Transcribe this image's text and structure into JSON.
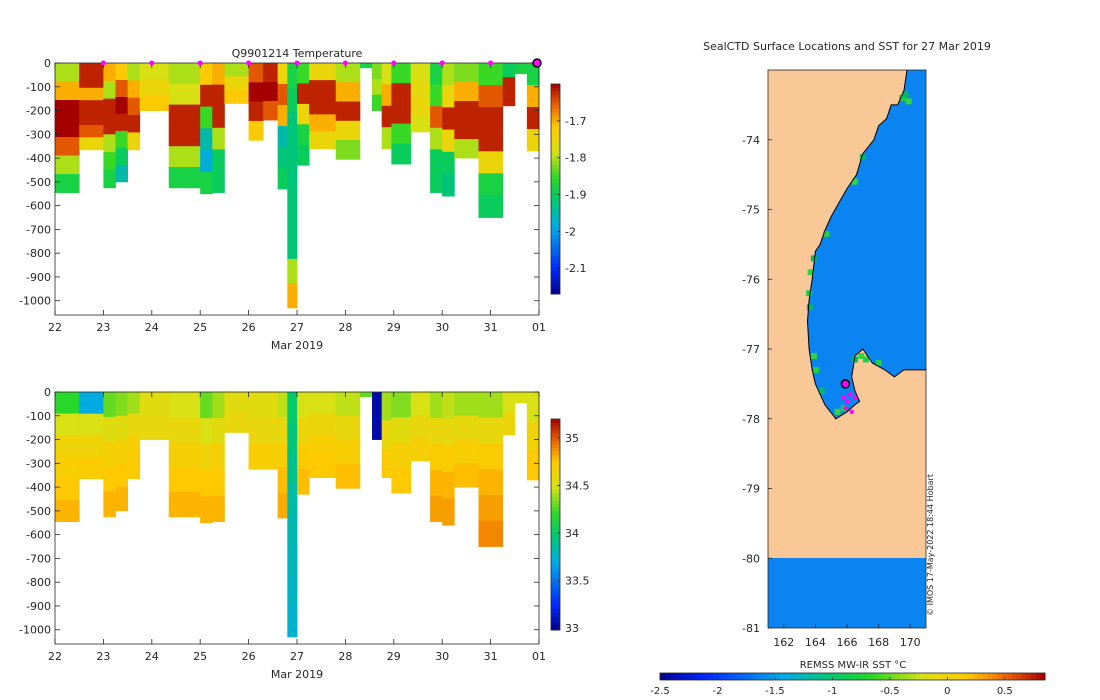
{
  "figure": {
    "credit": "© IMOS 17-May-2022 18:44 Hobart"
  },
  "colors": {
    "ocean": "#0a84f0",
    "land": "#f9c896",
    "coast": "#000000",
    "profile_marker": "#ff00ff",
    "current_marker": "#ff00ff",
    "axis": "#262626"
  },
  "chart_data": [
    {
      "type": "heatmap",
      "panel": "temperature",
      "title": "Q9901214  Temperature",
      "xlabel": "Mar 2019",
      "ylabel": "",
      "x_ticks": [
        22,
        23,
        24,
        25,
        26,
        27,
        28,
        29,
        30,
        31,
        1
      ],
      "x_tick_labels": [
        "22",
        "23",
        "24",
        "25",
        "26",
        "27",
        "28",
        "29",
        "30",
        "31",
        "01"
      ],
      "xlim": [
        22,
        32
      ],
      "y_ticks": [
        0,
        -100,
        -200,
        -300,
        -400,
        -500,
        -600,
        -700,
        -800,
        -900,
        -1000
      ],
      "y_tick_labels": [
        "0",
        "-100",
        "-200",
        "-300",
        "-400",
        "-500",
        "-600",
        "-700",
        "-800",
        "-900",
        "-1000"
      ],
      "ylim": [
        -1060,
        0
      ],
      "colorbar": {
        "ticks": [
          -1.7,
          -1.8,
          -1.9,
          -2,
          -2.1
        ],
        "tick_labels": [
          "-1.7",
          "-1.8",
          "-1.9",
          "-2",
          "-2.1"
        ],
        "range": [
          -2.17,
          -1.6
        ]
      },
      "profile_markers_x": [
        23,
        24,
        25,
        26,
        27,
        28,
        29,
        30,
        31
      ],
      "current_marker_x": 32,
      "profiles": [
        {
          "x0": 22.0,
          "x1": 22.5,
          "depth": 545,
          "values": [
            -1.8,
            -1.7,
            -1.6,
            -1.6,
            -1.65,
            -1.8,
            -1.88
          ]
        },
        {
          "x0": 22.5,
          "x1": 23.0,
          "depth": 365,
          "values": [
            -1.62,
            -1.62,
            -1.7,
            -1.62,
            -1.62,
            -1.65,
            -1.75
          ]
        },
        {
          "x0": 23.0,
          "x1": 23.25,
          "depth": 525,
          "values": [
            -1.7,
            -1.8,
            -1.62,
            -1.62,
            -1.8,
            -1.85,
            -1.88
          ]
        },
        {
          "x0": 23.25,
          "x1": 23.5,
          "depth": 500,
          "values": [
            -1.72,
            -1.65,
            -1.6,
            -1.62,
            -1.85,
            -1.9,
            -1.95
          ]
        },
        {
          "x0": 23.5,
          "x1": 23.75,
          "depth": 365,
          "values": [
            -1.8,
            -1.7,
            -1.65,
            -1.62,
            -1.75
          ]
        },
        {
          "x0": 23.75,
          "x1": 24.35,
          "depth": 200,
          "values": [
            -1.78,
            -1.75,
            -1.72
          ]
        },
        {
          "x0": 24.35,
          "x1": 25.0,
          "depth": 525,
          "values": [
            -1.8,
            -1.78,
            -1.62,
            -1.62,
            -1.8,
            -1.88
          ]
        },
        {
          "x0": 25.0,
          "x1": 25.25,
          "depth": 550,
          "values": [
            -1.72,
            -1.62,
            -1.85,
            -1.95,
            -1.98,
            -1.88
          ]
        },
        {
          "x0": 25.25,
          "x1": 25.5,
          "depth": 545,
          "values": [
            -1.7,
            -1.62,
            -1.62,
            -1.8,
            -1.9,
            -1.9
          ]
        },
        {
          "x0": 25.5,
          "x1": 26.0,
          "depth": 170,
          "values": [
            -1.8,
            -1.75,
            -1.72
          ]
        },
        {
          "x0": 26.0,
          "x1": 26.3,
          "depth": 325,
          "values": [
            -1.65,
            -1.6,
            -1.62,
            -1.72
          ]
        },
        {
          "x0": 26.3,
          "x1": 26.6,
          "depth": 240,
          "values": [
            -1.62,
            -1.6,
            -1.65
          ]
        },
        {
          "x0": 26.6,
          "x1": 26.8,
          "depth": 530,
          "values": [
            -1.75,
            -1.65,
            -1.7,
            -1.95,
            -1.92,
            -1.9
          ]
        },
        {
          "x0": 26.8,
          "x1": 27.0,
          "depth": 1030,
          "values": [
            -1.88,
            -1.9,
            -1.92,
            -1.92,
            -1.92,
            -1.92,
            -1.92,
            -1.92,
            -1.8,
            -1.7
          ]
        },
        {
          "x0": 27.0,
          "x1": 27.25,
          "depth": 430,
          "values": [
            -1.85,
            -1.62,
            -1.75,
            -1.88,
            -1.9
          ]
        },
        {
          "x0": 27.25,
          "x1": 27.8,
          "depth": 360,
          "values": [
            -1.75,
            -1.62,
            -1.62,
            -1.7,
            -1.75
          ]
        },
        {
          "x0": 27.8,
          "x1": 28.3,
          "depth": 405,
          "values": [
            -1.8,
            -1.7,
            -1.62,
            -1.75,
            -1.82
          ]
        },
        {
          "x0": 28.3,
          "x1": 28.55,
          "depth": 20,
          "values": [
            -1.88
          ]
        },
        {
          "x0": 28.55,
          "x1": 28.75,
          "depth": 200,
          "values": [
            -1.82,
            -1.8,
            -1.85
          ]
        },
        {
          "x0": 28.75,
          "x1": 28.95,
          "depth": 360,
          "values": [
            -1.78,
            -1.7,
            -1.62,
            -1.8
          ]
        },
        {
          "x0": 28.95,
          "x1": 29.35,
          "depth": 425,
          "values": [
            -1.85,
            -1.62,
            -1.62,
            -1.85,
            -1.9
          ]
        },
        {
          "x0": 29.35,
          "x1": 29.75,
          "depth": 290,
          "values": [
            -1.78,
            -1.76,
            -1.75,
            -1.78
          ]
        },
        {
          "x0": 29.75,
          "x1": 30.0,
          "depth": 545,
          "values": [
            -1.88,
            -1.85,
            -1.65,
            -1.8,
            -1.9,
            -1.9
          ]
        },
        {
          "x0": 30.0,
          "x1": 30.25,
          "depth": 560,
          "values": [
            -1.8,
            -1.75,
            -1.62,
            -1.75,
            -1.9,
            -1.92
          ]
        },
        {
          "x0": 30.25,
          "x1": 30.75,
          "depth": 400,
          "values": [
            -1.82,
            -1.7,
            -1.62,
            -1.62,
            -1.8
          ]
        },
        {
          "x0": 30.75,
          "x1": 31.25,
          "depth": 650,
          "values": [
            -1.85,
            -1.65,
            -1.62,
            -1.62,
            -1.75,
            -1.88,
            -1.9
          ]
        },
        {
          "x0": 31.25,
          "x1": 31.5,
          "depth": 180,
          "values": [
            -1.9,
            -1.62,
            -1.62
          ]
        },
        {
          "x0": 31.5,
          "x1": 31.75,
          "depth": 45,
          "values": [
            -1.88
          ]
        },
        {
          "x0": 31.75,
          "x1": 32.0,
          "depth": 370,
          "values": [
            -1.88,
            -1.7,
            -1.62,
            -1.75
          ]
        }
      ]
    },
    {
      "type": "heatmap",
      "panel": "salinity",
      "title": "",
      "xlabel": "Mar 2019",
      "ylabel": "",
      "x_ticks": [
        22,
        23,
        24,
        25,
        26,
        27,
        28,
        29,
        30,
        31,
        1
      ],
      "x_tick_labels": [
        "22",
        "23",
        "24",
        "25",
        "26",
        "27",
        "28",
        "29",
        "30",
        "31",
        "01"
      ],
      "xlim": [
        22,
        32
      ],
      "y_ticks": [
        0,
        -100,
        -200,
        -300,
        -400,
        -500,
        -600,
        -700,
        -800,
        -900,
        -1000
      ],
      "y_tick_labels": [
        "0",
        "-100",
        "-200",
        "-300",
        "-400",
        "-500",
        "-600",
        "-700",
        "-800",
        "-900",
        "-1000"
      ],
      "ylim": [
        -1060,
        0
      ],
      "colorbar": {
        "ticks": [
          35,
          34.5,
          34,
          33.5,
          33
        ],
        "tick_labels": [
          "35",
          "34.5",
          "34",
          "33.5",
          "33"
        ],
        "range": [
          32.98,
          35.2
        ]
      },
      "profiles": [
        {
          "x0": 22.0,
          "x1": 22.5,
          "depth": 545,
          "values": [
            34.2,
            34.5,
            34.65,
            34.7,
            34.75,
            34.8
          ]
        },
        {
          "x0": 22.5,
          "x1": 23.0,
          "depth": 365,
          "values": [
            33.7,
            34.5,
            34.65,
            34.72
          ]
        },
        {
          "x0": 23.0,
          "x1": 23.25,
          "depth": 525,
          "values": [
            34.3,
            34.55,
            34.68,
            34.75,
            34.8
          ]
        },
        {
          "x0": 23.25,
          "x1": 23.5,
          "depth": 500,
          "values": [
            34.35,
            34.55,
            34.68,
            34.75,
            34.8
          ]
        },
        {
          "x0": 23.5,
          "x1": 23.75,
          "depth": 365,
          "values": [
            34.4,
            34.6,
            34.7,
            34.72
          ]
        },
        {
          "x0": 23.75,
          "x1": 24.35,
          "depth": 200,
          "values": [
            34.55,
            34.6
          ]
        },
        {
          "x0": 24.35,
          "x1": 25.0,
          "depth": 525,
          "values": [
            34.5,
            34.6,
            34.68,
            34.75,
            34.8
          ]
        },
        {
          "x0": 25.0,
          "x1": 25.25,
          "depth": 550,
          "values": [
            34.3,
            34.5,
            34.65,
            34.75,
            34.8
          ]
        },
        {
          "x0": 25.25,
          "x1": 25.5,
          "depth": 545,
          "values": [
            34.4,
            34.55,
            34.68,
            34.75,
            34.8
          ]
        },
        {
          "x0": 25.5,
          "x1": 26.0,
          "depth": 170,
          "values": [
            34.55,
            34.6
          ]
        },
        {
          "x0": 26.0,
          "x1": 26.6,
          "depth": 325,
          "values": [
            34.55,
            34.6,
            34.7
          ]
        },
        {
          "x0": 26.6,
          "x1": 26.8,
          "depth": 530,
          "values": [
            34.45,
            34.6,
            34.7,
            34.78,
            34.82
          ]
        },
        {
          "x0": 26.8,
          "x1": 27.0,
          "depth": 1030,
          "values": [
            34.0,
            33.95,
            33.9,
            33.85,
            33.82,
            33.8,
            33.78,
            33.75
          ]
        },
        {
          "x0": 27.0,
          "x1": 27.25,
          "depth": 430,
          "values": [
            34.5,
            34.62,
            34.72,
            34.78
          ]
        },
        {
          "x0": 27.25,
          "x1": 27.8,
          "depth": 360,
          "values": [
            34.5,
            34.62,
            34.7,
            34.75
          ]
        },
        {
          "x0": 27.8,
          "x1": 28.3,
          "depth": 405,
          "values": [
            34.45,
            34.6,
            34.7,
            34.78
          ]
        },
        {
          "x0": 28.3,
          "x1": 28.55,
          "depth": 20,
          "values": [
            34.3
          ]
        },
        {
          "x0": 28.55,
          "x1": 28.75,
          "depth": 200,
          "values": [
            33.05,
            33.05
          ]
        },
        {
          "x0": 28.75,
          "x1": 28.95,
          "depth": 360,
          "values": [
            34.4,
            34.6,
            34.72
          ]
        },
        {
          "x0": 28.95,
          "x1": 29.35,
          "depth": 425,
          "values": [
            34.35,
            34.55,
            34.68,
            34.75
          ]
        },
        {
          "x0": 29.35,
          "x1": 29.75,
          "depth": 290,
          "values": [
            34.5,
            34.6,
            34.68
          ]
        },
        {
          "x0": 29.75,
          "x1": 30.0,
          "depth": 545,
          "values": [
            34.4,
            34.6,
            34.72,
            34.8,
            34.85
          ]
        },
        {
          "x0": 30.0,
          "x1": 30.25,
          "depth": 560,
          "values": [
            34.45,
            34.6,
            34.72,
            34.8,
            34.85
          ]
        },
        {
          "x0": 30.25,
          "x1": 30.75,
          "depth": 400,
          "values": [
            34.4,
            34.58,
            34.7,
            34.78
          ]
        },
        {
          "x0": 30.75,
          "x1": 31.25,
          "depth": 650,
          "values": [
            34.4,
            34.6,
            34.72,
            34.8,
            34.85,
            34.9
          ]
        },
        {
          "x0": 31.25,
          "x1": 31.5,
          "depth": 180,
          "values": [
            34.5,
            34.62
          ]
        },
        {
          "x0": 31.5,
          "x1": 31.75,
          "depth": 45,
          "values": [
            34.5
          ]
        },
        {
          "x0": 31.75,
          "x1": 32.0,
          "depth": 370,
          "values": [
            34.5,
            34.65,
            34.75
          ]
        }
      ]
    },
    {
      "type": "heatmap",
      "panel": "map",
      "title": "SealCTD Surface Locations and SST for 27 Mar 2019",
      "xlabel": "",
      "ylabel": "",
      "xlim": [
        161,
        171
      ],
      "ylim": [
        -81,
        -73
      ],
      "x_ticks": [
        162,
        164,
        166,
        168,
        170
      ],
      "x_tick_labels": [
        "162",
        "164",
        "166",
        "168",
        "170"
      ],
      "y_ticks": [
        -74,
        -75,
        -76,
        -77,
        -78,
        -79,
        -80,
        -81
      ],
      "y_tick_labels": [
        "-74",
        "-75",
        "-76",
        "-77",
        "-78",
        "-79",
        "-80",
        "-81"
      ],
      "colorbar": {
        "label": "REMSS MW-IR SST °C",
        "ticks": [
          -2.5,
          -2,
          -1.5,
          -1,
          -0.5,
          0,
          0.5
        ],
        "tick_labels": [
          "-2.5",
          "-2",
          "-1.5",
          "-1",
          "-0.5",
          "0",
          "0.5"
        ],
        "range": [
          -2.5,
          0.85
        ]
      },
      "ocean_sst": -1.55,
      "coastline": [
        [
          169.8,
          -73.0
        ],
        [
          169.6,
          -73.3
        ],
        [
          169.2,
          -73.5
        ],
        [
          168.8,
          -73.5
        ],
        [
          168.5,
          -73.7
        ],
        [
          168.0,
          -73.8
        ],
        [
          167.7,
          -74.0
        ],
        [
          167.0,
          -74.2
        ],
        [
          166.6,
          -74.5
        ],
        [
          166.0,
          -74.7
        ],
        [
          165.5,
          -74.9
        ],
        [
          165.0,
          -75.1
        ],
        [
          164.6,
          -75.3
        ],
        [
          164.3,
          -75.5
        ],
        [
          164.0,
          -75.6
        ],
        [
          163.8,
          -76.0
        ],
        [
          163.6,
          -76.3
        ],
        [
          163.5,
          -76.6
        ],
        [
          163.6,
          -77.0
        ],
        [
          163.8,
          -77.3
        ],
        [
          164.0,
          -77.5
        ],
        [
          164.6,
          -77.8
        ],
        [
          165.3,
          -78.0
        ],
        [
          166.0,
          -77.9
        ],
        [
          166.5,
          -77.8
        ],
        [
          166.8,
          -77.75
        ],
        [
          166.5,
          -77.6
        ],
        [
          166.3,
          -77.4
        ],
        [
          166.5,
          -77.1
        ],
        [
          167.0,
          -77.0
        ],
        [
          167.6,
          -77.2
        ],
        [
          168.4,
          -77.3
        ],
        [
          169.0,
          -77.4
        ],
        [
          169.6,
          -77.3
        ],
        [
          171.0,
          -77.3
        ]
      ],
      "coastal_green": [
        [
          163.6,
          -76.2
        ],
        [
          163.65,
          -76.4
        ],
        [
          163.9,
          -77.1
        ],
        [
          164.05,
          -77.3
        ],
        [
          164.4,
          -77.6
        ],
        [
          165.4,
          -77.9
        ],
        [
          165.8,
          -77.85
        ],
        [
          166.5,
          -77.15
        ],
        [
          166.9,
          -77.1
        ],
        [
          167.2,
          -77.15
        ],
        [
          167.0,
          -74.25
        ],
        [
          166.5,
          -74.6
        ],
        [
          164.7,
          -75.35
        ],
        [
          163.9,
          -75.7
        ],
        [
          163.7,
          -75.9
        ],
        [
          169.5,
          -73.4
        ],
        [
          169.7,
          -73.35
        ],
        [
          169.9,
          -73.45
        ],
        [
          168.0,
          -77.2
        ]
      ],
      "profiles": [
        [
          165.8,
          -77.7
        ],
        [
          166.0,
          -77.75
        ],
        [
          166.2,
          -77.65
        ],
        [
          166.5,
          -77.7
        ],
        [
          165.9,
          -77.85
        ],
        [
          166.3,
          -77.9
        ]
      ],
      "current": [
        165.9,
        -77.5
      ],
      "southern_ocean_lat": -80
    }
  ]
}
